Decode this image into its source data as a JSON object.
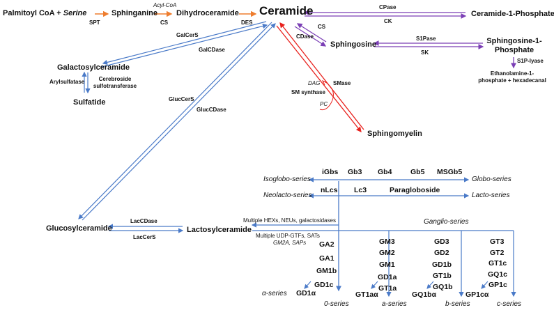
{
  "colors": {
    "orange": "#ee7d2e",
    "purple": "#7b3fb5",
    "blue": "#4a7ac8",
    "red": "#e8201c",
    "text": "#111111"
  },
  "nodes": {
    "palmitoyl": "Palmitoyl CoA + ",
    "serine": "Serine",
    "sphinganine": "Sphinganine",
    "dihydroceramide": "Dihydroceramide",
    "ceramide": "Ceramide",
    "ceramide1p": "Ceramide-1-Phosphate",
    "sphingosine": "Sphingosine",
    "s1p": "Sphingosine-1-\nPhosphate",
    "ethanolamine": "Ethanolamine-1-\nphosphate + hexadecanal",
    "galactosylceramide": "Galactosylceramide",
    "sulfatide": "Sulfatide",
    "sphingomyelin": "Sphingomyelin",
    "glucosylceramide": "Glucosylceramide",
    "lactosylceramide": "Lactosylceramide"
  },
  "enzymes": {
    "spt": "SPT",
    "acylcoa": "Acyl-CoA",
    "cs1": "CS",
    "des": "DES",
    "cpase": "CPase",
    "ck": "CK",
    "cs2": "CS",
    "cdase": "CDase",
    "s1pase": "S1Pase",
    "sk": "SK",
    "s1plyase": "S1P-lyase",
    "galcers": "GalCerS",
    "galcdase": "GalCDase",
    "arylsulfatase": "Arylsulfatase",
    "cerebroside": "Cerebroside\nsulfotransferase",
    "smase": "SMase",
    "dag": "DAG",
    "smsynthase": "SM synthase",
    "pc": "PC",
    "glucers": "GlucCerS",
    "glucdase": "GlucCDase",
    "laccdase": "LacCDase",
    "laccers": "LacCerS",
    "hexs": "Multiple HEXs, NEUs, galactosidases",
    "udp": "Multiple UDP-GTFs, SATs",
    "gm2a": "GM2A, SAPs"
  },
  "series": {
    "isoglobo": "Isoglobo-series",
    "globo": "Globo-series",
    "neolacto": "Neolacto-series",
    "lacto": "Lacto-series",
    "ganglio": "Ganglio-series",
    "alpha": "α-series",
    "zero": "0-series",
    "a": "a-series",
    "b": "b-series",
    "c": "c-series"
  },
  "glycans": {
    "igbs": "iGbs",
    "gb3": "Gb3",
    "gb4": "Gb4",
    "gb5": "Gb5",
    "msgb5": "MSGb5",
    "nlcs": "nLcs",
    "lc3": "Lc3",
    "paragloboside": "Paragloboside",
    "ga2": "GA2",
    "ga1": "GA1",
    "gm1b": "GM1b",
    "gd1c": "GD1c",
    "gd1alpha": "GD1α",
    "gm3": "GM3",
    "gm2": "GM2",
    "gm1": "GM1",
    "gd1a": "GD1a",
    "gt1a": "GT1a",
    "gt1alpha": "GT1aα",
    "gd3": "GD3",
    "gd2": "GD2",
    "gd1b": "GD1b",
    "gt1b": "GT1b",
    "gq1b": "GQ1b",
    "gq1balpha": "GQ1bα",
    "gt3": "GT3",
    "gt2": "GT2",
    "gt1c": "GT1c",
    "gq1c": "GQ1c",
    "gp1c": "GP1c",
    "gp1calpha": "GP1cα"
  }
}
